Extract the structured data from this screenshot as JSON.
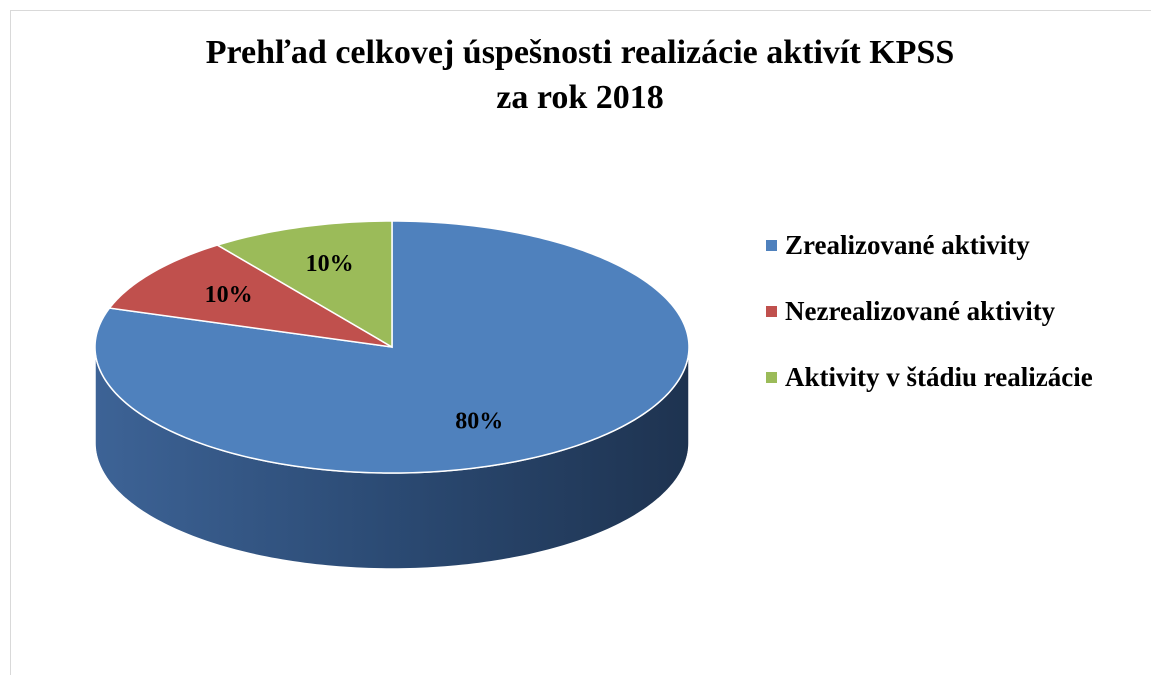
{
  "chart_data": {
    "type": "pie3d",
    "title": [
      "Prehľad celkovej úspešnosti realizácie aktivít KPSS",
      "za rok 2018"
    ],
    "categories": [
      "Zrealizované aktivity",
      "Nezrealizované aktivity",
      "Aktivity v štádiu realizácie"
    ],
    "values": [
      80,
      10,
      10
    ],
    "value_labels": [
      "80%",
      "10%",
      "10%"
    ],
    "colors": [
      "#4f81bd",
      "#c0504d",
      "#9bbb59"
    ],
    "legend": "right"
  }
}
